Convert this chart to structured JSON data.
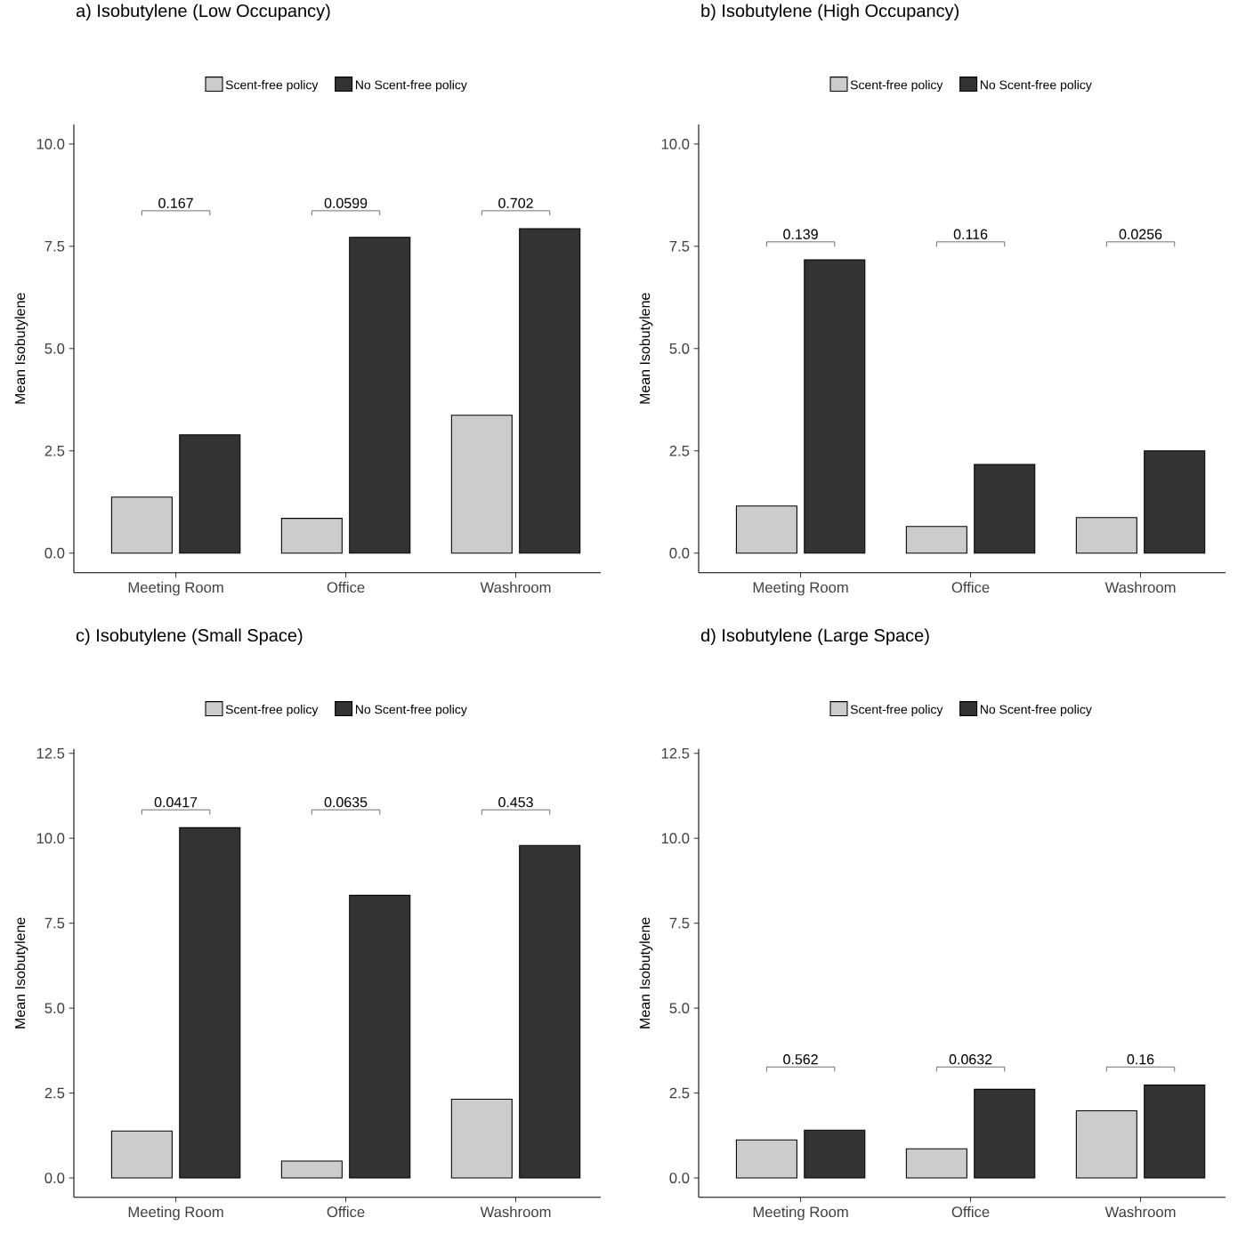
{
  "chart_data": [
    {
      "type": "bar",
      "title": "a) Isobutylene (Low Occupancy)",
      "ylabel": "Mean Isobutylene",
      "categories": [
        "Meeting Room",
        "Office",
        "Washroom"
      ],
      "series": [
        {
          "name": "Scent-free policy",
          "color": "#cccccc",
          "values": [
            1.37,
            0.85,
            3.37
          ]
        },
        {
          "name": "No Scent-free policy",
          "color": "#333333",
          "values": [
            2.89,
            7.72,
            7.93
          ]
        }
      ],
      "ylim": [
        -0.48,
        10.48
      ],
      "yticks": [
        {
          "value": 0,
          "label": "0.0"
        },
        {
          "value": 2.5,
          "label": "2.5"
        },
        {
          "value": 5,
          "label": "5.0"
        },
        {
          "value": 7.5,
          "label": "7.5"
        },
        {
          "value": 10,
          "label": "10.0"
        }
      ],
      "legend": "top",
      "annotations": [
        "0.167",
        "0.0599",
        "0.702"
      ]
    },
    {
      "type": "bar",
      "title": "b) Isobutylene (High Occupancy)",
      "ylabel": "Mean Isobutylene",
      "categories": [
        "Meeting Room",
        "Office",
        "Washroom"
      ],
      "series": [
        {
          "name": "Scent-free policy",
          "color": "#cccccc",
          "values": [
            1.15,
            0.65,
            0.87
          ]
        },
        {
          "name": "No Scent-free policy",
          "color": "#333333",
          "values": [
            7.17,
            2.17,
            2.5
          ]
        }
      ],
      "ylim": [
        -0.48,
        10.48
      ],
      "yticks": [
        {
          "value": 0,
          "label": "0.0"
        },
        {
          "value": 2.5,
          "label": "2.5"
        },
        {
          "value": 5,
          "label": "5.0"
        },
        {
          "value": 7.5,
          "label": "7.5"
        },
        {
          "value": 10,
          "label": "10.0"
        }
      ],
      "legend": "top",
      "annotations": [
        "0.139",
        "0.116",
        "0.0256"
      ]
    },
    {
      "type": "bar",
      "title": "c) Isobutylene (Small Space)",
      "ylabel": "Mean Isobutylene",
      "categories": [
        "Meeting Room",
        "Office",
        "Washroom"
      ],
      "series": [
        {
          "name": "Scent-free policy",
          "color": "#cccccc",
          "values": [
            1.38,
            0.5,
            2.32
          ]
        },
        {
          "name": "No Scent-free policy",
          "color": "#333333",
          "values": [
            10.31,
            8.32,
            9.79
          ]
        }
      ],
      "ylim": [
        -0.57,
        12.63
      ],
      "yticks": [
        {
          "value": 0,
          "label": "0.0"
        },
        {
          "value": 2.5,
          "label": "2.5"
        },
        {
          "value": 5,
          "label": "5.0"
        },
        {
          "value": 7.5,
          "label": "7.5"
        },
        {
          "value": 10,
          "label": "10.0"
        },
        {
          "value": 12.5,
          "label": "12.5"
        }
      ],
      "legend": "top",
      "annotations": [
        "0.0417",
        "0.0635",
        "0.453"
      ]
    },
    {
      "type": "bar",
      "title": "d) Isobutylene (Large Space)",
      "ylabel": "Mean Isobutylene",
      "categories": [
        "Meeting Room",
        "Office",
        "Washroom"
      ],
      "series": [
        {
          "name": "Scent-free policy",
          "color": "#cccccc",
          "values": [
            1.12,
            0.86,
            1.98
          ]
        },
        {
          "name": "No Scent-free policy",
          "color": "#333333",
          "values": [
            1.41,
            2.61,
            2.74
          ]
        }
      ],
      "ylim": [
        -0.57,
        12.63
      ],
      "yticks": [
        {
          "value": 0,
          "label": "0.0"
        },
        {
          "value": 2.5,
          "label": "2.5"
        },
        {
          "value": 5,
          "label": "5.0"
        },
        {
          "value": 7.5,
          "label": "7.5"
        },
        {
          "value": 10,
          "label": "10.0"
        },
        {
          "value": 12.5,
          "label": "12.5"
        }
      ],
      "legend": "top",
      "annotations": [
        "0.562",
        "0.0632",
        "0.16"
      ]
    }
  ]
}
